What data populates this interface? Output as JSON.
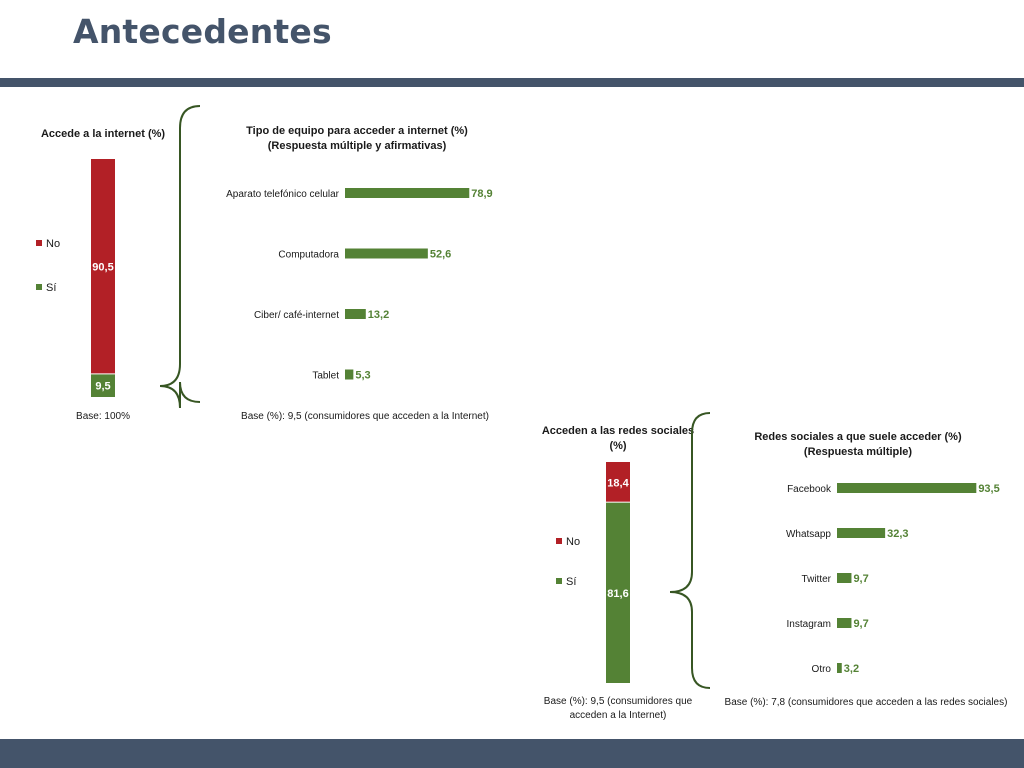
{
  "slide": {
    "title": "Antecedentes",
    "colors": {
      "header_band": "#44546a",
      "no": "#b22026",
      "si": "#548235",
      "brace": "#375623"
    }
  },
  "chart_data": [
    {
      "type": "bar",
      "stacked": true,
      "title": "Accede a la internet (%)",
      "categories": [
        "Accede a la internet"
      ],
      "series": [
        {
          "name": "Sí",
          "values": [
            9.5
          ],
          "labels": [
            "9,5"
          ],
          "color": "#548235"
        },
        {
          "name": "No",
          "values": [
            90.5
          ],
          "labels": [
            "90,5"
          ],
          "color": "#b22026"
        }
      ],
      "legend": [
        "No",
        "Sí"
      ],
      "base_note": "Base: 100%",
      "ylim": [
        0,
        100
      ]
    },
    {
      "type": "bar",
      "orientation": "horizontal",
      "title": "Tipo de equipo para acceder a internet (%)",
      "subtitle": "(Respuesta múltiple y afirmativas)",
      "categories": [
        "Aparato telefónico celular",
        "Computadora",
        "Ciber/ café-internet",
        "Tablet"
      ],
      "values": [
        78.9,
        52.6,
        13.2,
        5.3
      ],
      "labels": [
        "78,9",
        "52,6",
        "13,2",
        "5,3"
      ],
      "color": "#548235",
      "base_note": "Base (%): 9,5 (consumidores que acceden a la Internet)"
    },
    {
      "type": "bar",
      "stacked": true,
      "title": "Acceden a las redes sociales",
      "title_line2": "(%)",
      "categories": [
        "Acceden a las redes sociales"
      ],
      "series": [
        {
          "name": "Sí",
          "values": [
            81.6
          ],
          "labels": [
            "81,6"
          ],
          "color": "#548235"
        },
        {
          "name": "No",
          "values": [
            18.4
          ],
          "labels": [
            "18,4"
          ],
          "color": "#b22026"
        }
      ],
      "legend": [
        "No",
        "Sí"
      ],
      "base_note": "Base (%): 9,5 (consumidores que",
      "base_note_line2": "acceden a la Internet)",
      "ylim": [
        0,
        100
      ]
    },
    {
      "type": "bar",
      "orientation": "horizontal",
      "title": "Redes sociales a que suele acceder (%)",
      "subtitle": "(Respuesta múltiple)",
      "categories": [
        "Facebook",
        "Whatsapp",
        "Twitter",
        "Instagram",
        "Otro"
      ],
      "values": [
        93.5,
        32.3,
        9.7,
        9.7,
        3.2
      ],
      "labels": [
        "93,5",
        "32,3",
        "9,7",
        "9,7",
        "3,2"
      ],
      "color": "#548235",
      "base_note": "Base (%): 7,8 (consumidores que acceden a las redes sociales)"
    }
  ]
}
